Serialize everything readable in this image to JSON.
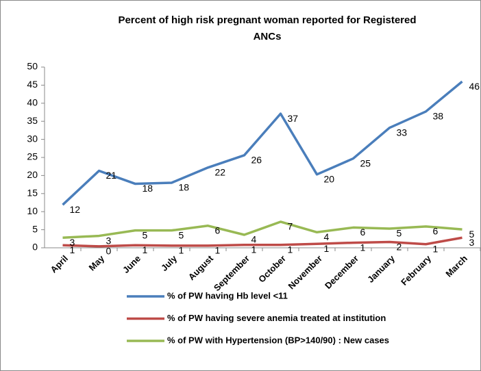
{
  "chart_data": {
    "type": "line",
    "title": "Percent of high risk pregnant woman reported for Registered ANCs",
    "categories": [
      "April",
      "May",
      "June",
      "July",
      "August",
      "September",
      "October",
      "November",
      "December",
      "January",
      "February",
      "March"
    ],
    "series": [
      {
        "name": "% of PW having Hb level <11",
        "color": "#4a7ebb",
        "values": [
          11.9,
          21.3,
          17.7,
          18.0,
          22.2,
          25.6,
          37.1,
          20.3,
          24.7,
          33.2,
          37.7,
          46.0
        ],
        "value_labels": [
          "12",
          "21",
          "18",
          "18",
          "22",
          "26",
          "37",
          "20",
          "25",
          "33",
          "38",
          "46"
        ]
      },
      {
        "name": "% of PW having severe anemia treated at institution",
        "color": "#be4b48",
        "values": [
          0.7,
          0.4,
          0.7,
          0.6,
          0.6,
          0.8,
          0.8,
          1.1,
          1.4,
          1.6,
          1.0,
          2.8
        ],
        "value_labels": [
          "1",
          "0",
          "1",
          "1",
          "1",
          "1",
          "1",
          "1",
          "1",
          "2",
          "1",
          "3"
        ]
      },
      {
        "name": "% of PW with Hypertension (BP>140/90) : New cases",
        "color": "#98b954",
        "values": [
          2.8,
          3.3,
          4.8,
          4.8,
          6.1,
          3.6,
          7.2,
          4.3,
          5.6,
          5.3,
          5.9,
          5.1
        ],
        "value_labels": [
          "3",
          "3",
          "5",
          "5",
          "6",
          "4",
          "7",
          "4",
          "6",
          "5",
          "6",
          "5"
        ]
      }
    ],
    "ylim": [
      0,
      50
    ],
    "yticks": [
      0,
      5,
      10,
      15,
      20,
      25,
      30,
      35,
      40,
      45,
      50
    ]
  }
}
